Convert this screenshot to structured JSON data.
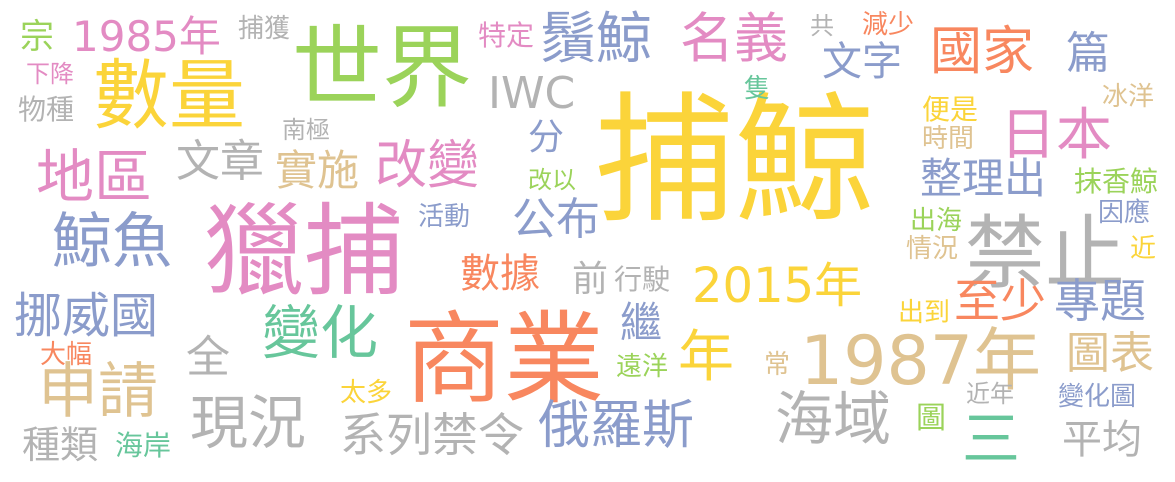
{
  "palette": {
    "yellow": "#fbd43a",
    "green": "#9bd35a",
    "pink": "#e38bc3",
    "orange": "#f8875f",
    "blue": "#8b9ccb",
    "tan": "#dfc391",
    "gray": "#b3b3b3",
    "teal": "#67c69b"
  },
  "words": [
    {
      "id": "buying",
      "text": "捕鯨",
      "color": "yellow"
    },
    {
      "id": "shijie",
      "text": "世界",
      "color": "green"
    },
    {
      "id": "shuliang",
      "text": "數量",
      "color": "yellow"
    },
    {
      "id": "liebu",
      "text": "獵捕",
      "color": "pink"
    },
    {
      "id": "shangye",
      "text": "商業",
      "color": "orange"
    },
    {
      "id": "jinzhi",
      "text": "禁止",
      "color": "gray"
    },
    {
      "id": "y1987",
      "text": "1987年",
      "color": "tan"
    },
    {
      "id": "y2015",
      "text": "2015年",
      "color": "yellow"
    },
    {
      "id": "y1985",
      "text": "1985年",
      "color": "pink"
    },
    {
      "id": "xujing",
      "text": "鬚鯨",
      "color": "blue"
    },
    {
      "id": "mingyi",
      "text": "名義",
      "color": "pink"
    },
    {
      "id": "guojia",
      "text": "國家",
      "color": "orange"
    },
    {
      "id": "riben",
      "text": "日本",
      "color": "pink"
    },
    {
      "id": "diqu",
      "text": "地區",
      "color": "pink"
    },
    {
      "id": "jingyu",
      "text": "鯨魚",
      "color": "blue"
    },
    {
      "id": "gaibian",
      "text": "改變",
      "color": "pink"
    },
    {
      "id": "shishi",
      "text": "實施",
      "color": "tan"
    },
    {
      "id": "wenzhang",
      "text": "文章",
      "color": "gray"
    },
    {
      "id": "wenzi",
      "text": "文字",
      "color": "blue"
    },
    {
      "id": "iwc",
      "text": "IWC",
      "color": "gray"
    },
    {
      "id": "zheng",
      "text": "整理出",
      "color": "blue"
    },
    {
      "id": "nuowei",
      "text": "挪威國",
      "color": "blue"
    },
    {
      "id": "shenqing",
      "text": "申請",
      "color": "tan"
    },
    {
      "id": "xiankuang",
      "text": "現況",
      "color": "gray"
    },
    {
      "id": "zhonglei",
      "text": "種類",
      "color": "gray"
    },
    {
      "id": "haian",
      "text": "海岸",
      "color": "teal"
    },
    {
      "id": "bianhua",
      "text": "變化",
      "color": "teal"
    },
    {
      "id": "eluosi",
      "text": "俄羅斯",
      "color": "blue"
    },
    {
      "id": "xilie",
      "text": "系列禁令",
      "color": "gray"
    },
    {
      "id": "haiyu",
      "text": "海域",
      "color": "gray"
    },
    {
      "id": "nian",
      "text": "年",
      "color": "yellow"
    },
    {
      "id": "zhishao",
      "text": "至少",
      "color": "orange"
    },
    {
      "id": "zhuanti",
      "text": "專題",
      "color": "blue"
    },
    {
      "id": "tubiao",
      "text": "圖表",
      "color": "tan"
    },
    {
      "id": "pingjun",
      "text": "平均",
      "color": "gray"
    },
    {
      "id": "san",
      "text": "三",
      "color": "teal"
    },
    {
      "id": "shuju",
      "text": "數據",
      "color": "orange"
    },
    {
      "id": "gongbu",
      "text": "公布",
      "color": "blue"
    },
    {
      "id": "qian",
      "text": "前",
      "color": "gray"
    },
    {
      "id": "xingshi",
      "text": "行駛",
      "color": "gray"
    },
    {
      "id": "ji",
      "text": "繼",
      "color": "blue"
    },
    {
      "id": "quan",
      "text": "全",
      "color": "gray"
    },
    {
      "id": "zong",
      "text": "宗",
      "color": "green"
    },
    {
      "id": "buhuo",
      "text": "捕獲",
      "color": "gray"
    },
    {
      "id": "xiajiang",
      "text": "下降",
      "color": "pink"
    },
    {
      "id": "wuzhong",
      "text": "物種",
      "color": "gray"
    },
    {
      "id": "teding",
      "text": "特定",
      "color": "pink"
    },
    {
      "id": "gong",
      "text": "共",
      "color": "gray"
    },
    {
      "id": "jianshao",
      "text": "減少",
      "color": "orange"
    },
    {
      "id": "pian",
      "text": "篇",
      "color": "blue"
    },
    {
      "id": "bingyang",
      "text": "冰洋",
      "color": "tan"
    },
    {
      "id": "zhi",
      "text": "隻",
      "color": "teal"
    },
    {
      "id": "nanji",
      "text": "南極",
      "color": "gray"
    },
    {
      "id": "fen",
      "text": "分",
      "color": "blue"
    },
    {
      "id": "gaiyi",
      "text": "改以",
      "color": "green"
    },
    {
      "id": "huodong",
      "text": "活動",
      "color": "blue"
    },
    {
      "id": "bianshi",
      "text": "便是",
      "color": "yellow"
    },
    {
      "id": "shijian",
      "text": "時間",
      "color": "tan"
    },
    {
      "id": "moxiang",
      "text": "抹香鯨",
      "color": "green"
    },
    {
      "id": "chuhai",
      "text": "出海",
      "color": "green"
    },
    {
      "id": "qingkuang",
      "text": "情況",
      "color": "tan"
    },
    {
      "id": "yinying",
      "text": "因應",
      "color": "blue"
    },
    {
      "id": "jin",
      "text": "近",
      "color": "yellow"
    },
    {
      "id": "chudao",
      "text": "出到",
      "color": "yellow"
    },
    {
      "id": "dafu",
      "text": "大幅",
      "color": "orange"
    },
    {
      "id": "taiduo",
      "text": "太多",
      "color": "yellow"
    },
    {
      "id": "yuanyang",
      "text": "遠洋",
      "color": "green"
    },
    {
      "id": "chang",
      "text": "常",
      "color": "tan"
    },
    {
      "id": "jinnian",
      "text": "近年",
      "color": "gray"
    },
    {
      "id": "tu",
      "text": "圖",
      "color": "green"
    },
    {
      "id": "bianhuatu",
      "text": "變化圖",
      "color": "blue"
    }
  ]
}
